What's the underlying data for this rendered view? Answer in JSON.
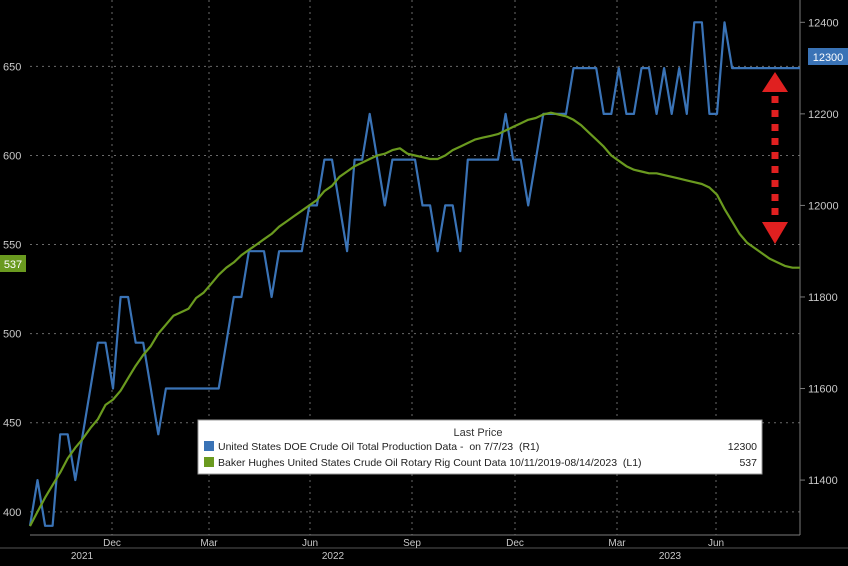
{
  "chart_data": {
    "type": "line",
    "x_tick_labels": [
      "Dec",
      "Mar",
      "Jun",
      "Sep",
      "Dec",
      "Mar",
      "Jun"
    ],
    "x_year_labels": [
      "2021",
      "2022",
      "2023"
    ],
    "left_axis": {
      "ticks": [
        "400",
        "450",
        "500",
        "550",
        "600",
        "650"
      ],
      "range": [
        387,
        685
      ]
    },
    "right_axis": {
      "ticks": [
        "11400",
        "11600",
        "11800",
        "12000",
        "12200",
        "12400"
      ],
      "range": [
        11280,
        12440
      ]
    },
    "legend": {
      "title": "Last Price",
      "position": "bottom-right",
      "entries": [
        {
          "label": "United States DOE Crude Oil Total Production Data -  on 7/7/23  (R1)",
          "value": "12300",
          "color": "#3a73b6"
        },
        {
          "label": "Baker Hughes United States Crude Oil Rotary Rig Count Data 10/11/2019-08/14/2023  (L1)",
          "value": "537",
          "color": "#6a9a1f"
        }
      ]
    },
    "last_value_tags": {
      "right": "12300",
      "left": "537"
    },
    "series": [
      {
        "name": "United States DOE Crude Oil Total Production Data",
        "axis": "right",
        "color": "#3a73b6",
        "values": [
          11300,
          11400,
          11300,
          11300,
          11500,
          11500,
          11400,
          11500,
          11600,
          11700,
          11700,
          11600,
          11800,
          11800,
          11700,
          11700,
          11600,
          11500,
          11600,
          11600,
          11600,
          11600,
          11600,
          11600,
          11600,
          11600,
          11700,
          11800,
          11800,
          11900,
          11900,
          11900,
          11800,
          11900,
          11900,
          11900,
          11900,
          12000,
          12000,
          12100,
          12100,
          12000,
          11900,
          12100,
          12100,
          12200,
          12100,
          12000,
          12100,
          12100,
          12100,
          12100,
          12000,
          12000,
          11900,
          12000,
          12000,
          11900,
          12100,
          12100,
          12100,
          12100,
          12100,
          12200,
          12100,
          12100,
          12000,
          12100,
          12200,
          12200,
          12200,
          12200,
          12300,
          12300,
          12300,
          12300,
          12200,
          12200,
          12300,
          12200,
          12200,
          12300,
          12300,
          12200,
          12300,
          12200,
          12300,
          12200,
          12400,
          12400,
          12200,
          12200,
          12400,
          12300,
          12300,
          12300,
          12300,
          12300,
          12300,
          12300,
          12300,
          12300,
          12300
        ]
      },
      {
        "name": "Baker Hughes United States Crude Oil Rotary Rig Count",
        "axis": "left",
        "color": "#6a9a1f",
        "values": [
          392,
          400,
          408,
          415,
          422,
          430,
          436,
          441,
          447,
          452,
          460,
          463,
          468,
          475,
          482,
          488,
          493,
          500,
          505,
          510,
          512,
          514,
          520,
          523,
          528,
          533,
          537,
          540,
          544,
          547,
          550,
          553,
          556,
          560,
          563,
          566,
          569,
          572,
          575,
          580,
          583,
          588,
          591,
          594,
          596,
          598,
          600,
          601,
          603,
          604,
          601,
          600,
          599,
          598,
          598,
          600,
          603,
          605,
          607,
          609,
          610,
          611,
          612,
          614,
          616,
          618,
          620,
          621,
          623,
          624,
          623,
          622,
          620,
          617,
          613,
          609,
          605,
          600,
          597,
          594,
          592,
          591,
          590,
          590,
          589,
          588,
          587,
          586,
          585,
          584,
          582,
          578,
          570,
          563,
          556,
          551,
          548,
          545,
          542,
          540,
          538,
          537,
          537
        ]
      }
    ],
    "annotation": "red dotted double-headed arrow between 12300 and 537 lines"
  }
}
